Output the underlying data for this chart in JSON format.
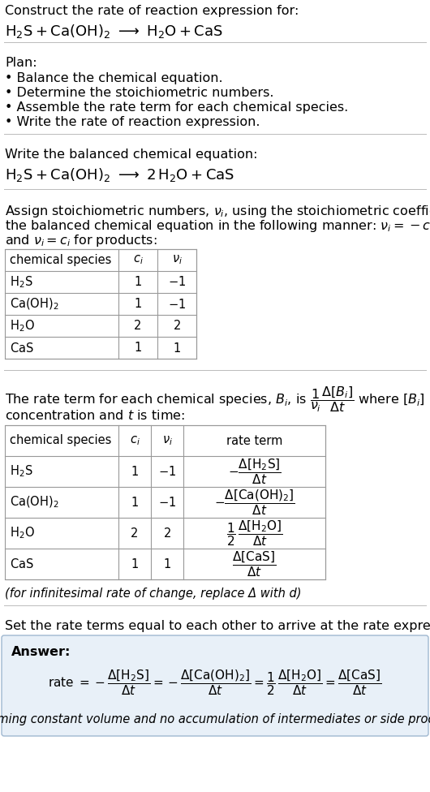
{
  "bg_color": "#ffffff",
  "text_color": "#000000",
  "answer_bg": "#e8f0f8",
  "answer_border": "#a0b8d0",
  "title_line1": "Construct the rate of reaction expression for:",
  "plan_header": "Plan:",
  "plan_items": [
    "• Balance the chemical equation.",
    "• Determine the stoichiometric numbers.",
    "• Assemble the rate term for each chemical species.",
    "• Write the rate of reaction expression."
  ],
  "balanced_header": "Write the balanced chemical equation:",
  "stoich_line1": "Assign stoichiometric numbers, νᵢ, using the stoichiometric coefficients, cᵢ, from",
  "stoich_line2": "the balanced chemical equation in the following manner: νᵢ = −cᵢ for reactants",
  "stoich_line3": "and νᵢ = cᵢ for products:",
  "rate_line1a": "The rate term for each chemical species, Bᵢ, is",
  "rate_line1b": "where [Bᵢ] is the amount",
  "rate_line2": "concentration and t is time:",
  "delta_note": "(for infinitesimal rate of change, replace Δ with d)",
  "final_header": "Set the rate terms equal to each other to arrive at the rate expression:",
  "answer_label": "Answer:",
  "answer_note": "(assuming constant volume and no accumulation of intermediates or side products)"
}
